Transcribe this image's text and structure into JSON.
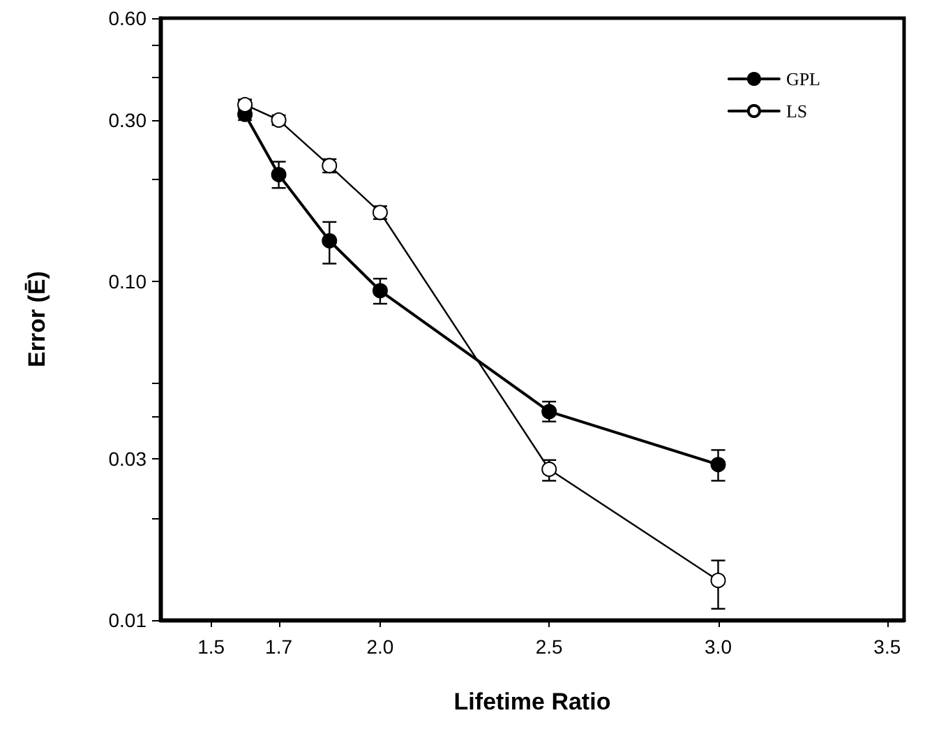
{
  "chart_data": {
    "type": "line",
    "xlabel": "Lifetime Ratio",
    "ylabel": "Error (Ē)",
    "x": [
      1.6,
      1.7,
      1.85,
      2.0,
      2.5,
      3.0
    ],
    "series": [
      {
        "name": "GPL",
        "color": "#000000",
        "values": [
          0.312,
          0.207,
          0.132,
          0.094,
          0.0413,
          0.0288
        ],
        "errors": [
          [
            0.3,
            0.34
          ],
          [
            0.189,
            0.226
          ],
          [
            0.113,
            0.15
          ],
          [
            0.086,
            0.102
          ],
          [
            0.0386,
            0.0442
          ],
          [
            0.0258,
            0.0318
          ]
        ]
      },
      {
        "name": "LS",
        "color": "#000000",
        "values": [
          0.333,
          0.3,
          0.22,
          0.16,
          0.0279,
          0.0131
        ],
        "errors": [
          [
            0.322,
            0.345
          ],
          [
            0.29,
            0.31
          ],
          [
            0.21,
            0.23
          ],
          [
            0.153,
            0.167
          ],
          [
            0.0258,
            0.0297
          ],
          [
            0.0108,
            0.015
          ]
        ]
      }
    ],
    "xlim": [
      1.35,
      3.55
    ],
    "xticks": [
      1.5,
      1.7,
      {
        "value": 2.0,
        "label": "2.0"
      },
      2.5,
      {
        "value": 3.0,
        "label": "3.0"
      },
      3.5
    ],
    "log": "y",
    "ylim": [
      0.01,
      0.6
    ],
    "yticks": [
      0.01,
      {
        "value": 0.02,
        "label": null
      },
      0.03,
      {
        "value": 0.04,
        "label": null
      },
      {
        "value": 0.05,
        "label": null
      },
      {
        "value": 0.1,
        "label": "0.10"
      },
      {
        "value": 0.2,
        "label": null
      },
      {
        "value": 0.3,
        "label": "0.30"
      },
      {
        "value": 0.4,
        "label": null
      },
      {
        "value": 0.5,
        "label": null
      },
      {
        "value": 0.6,
        "label": "0.60"
      }
    ],
    "marker": "circle",
    "legend": "top right",
    "grid": false
  }
}
